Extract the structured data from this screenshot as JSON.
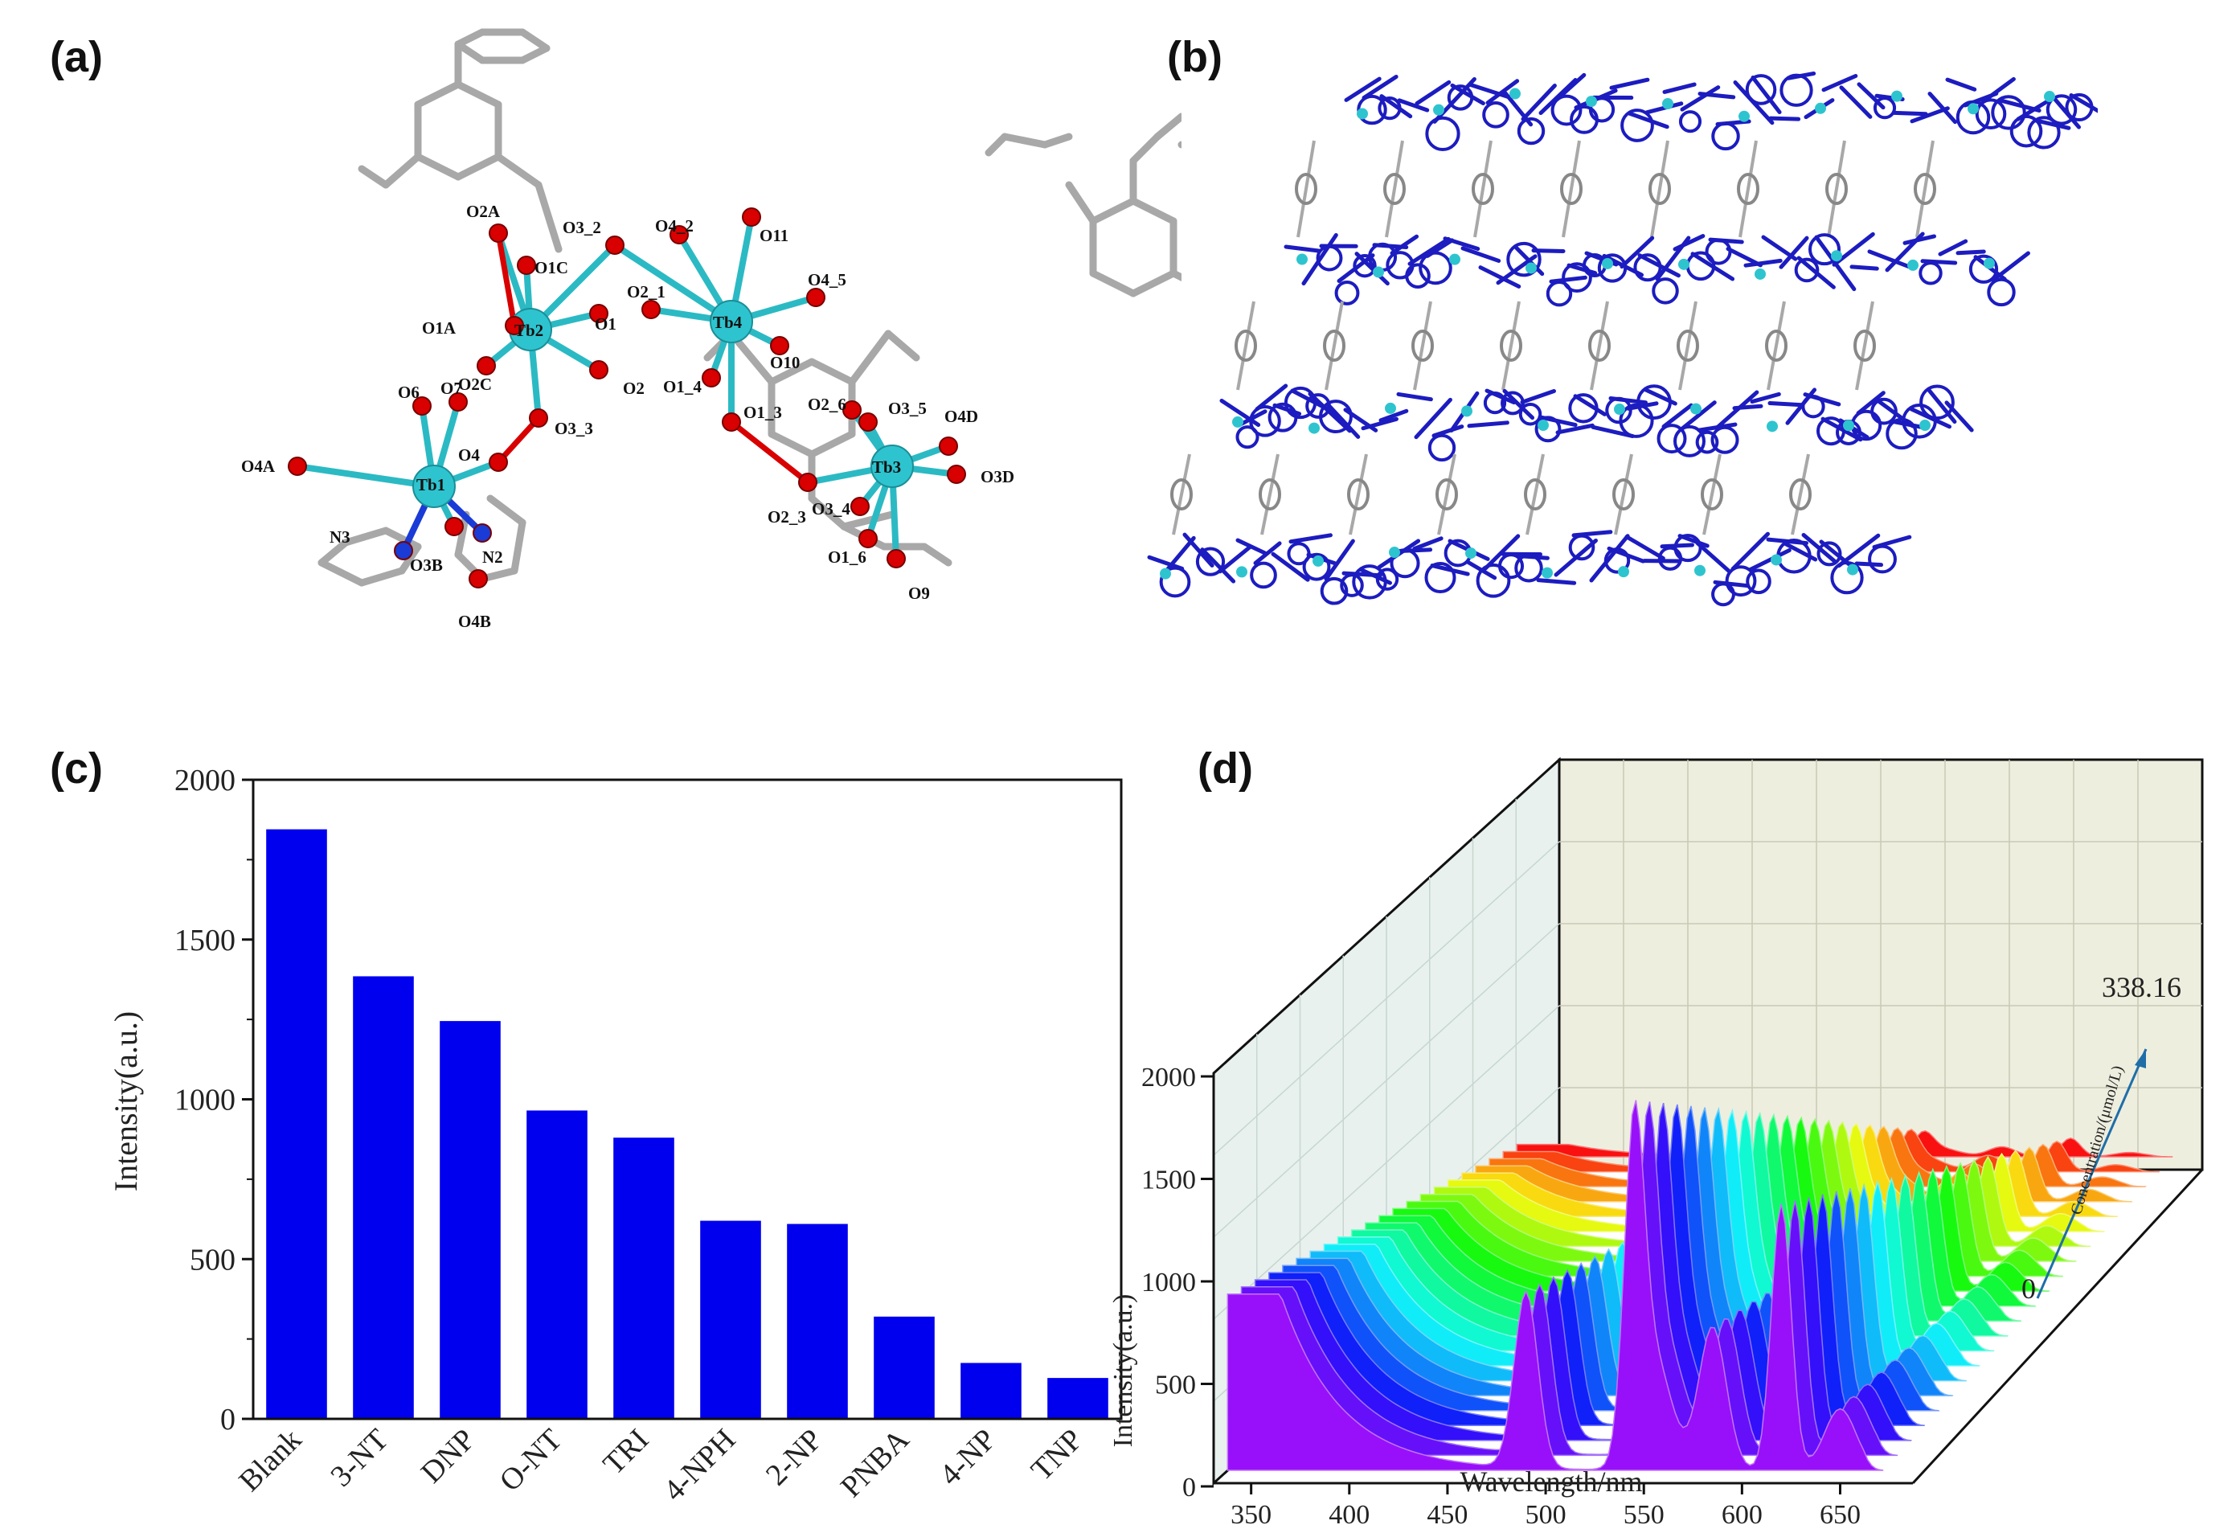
{
  "panels": {
    "a": {
      "label": "(a)",
      "atoms": [
        "Tb1",
        "Tb2",
        "Tb3",
        "Tb4",
        "O6",
        "O7",
        "O4A",
        "O4",
        "O3B",
        "N3",
        "N2",
        "O4B",
        "O2A",
        "O1C",
        "O3_2",
        "O4_2",
        "O11",
        "O1A",
        "O1",
        "O2_1",
        "O4_5",
        "O2C",
        "O2",
        "O10",
        "O1_4",
        "O3_3",
        "O1_3",
        "O2_6",
        "O3_5",
        "O4D",
        "O3D",
        "O2_3",
        "O3_4",
        "O1_6",
        "O9",
        "O2A",
        "O1A"
      ]
    },
    "b": {
      "label": "(b)"
    },
    "c": {
      "label": "(c)"
    },
    "d": {
      "label": "(d)"
    }
  },
  "colors": {
    "bar": "#0000ee",
    "tb": "#2ec4cf",
    "oxygen": "#d80000",
    "nitrogen": "#1a3bd6",
    "carbon": "#a8a8a8",
    "framework": "#1c1cc0",
    "wall": "#eeefe2"
  },
  "chart_data": [
    {
      "type": "bar",
      "categories": [
        "Blank",
        "3-NT",
        "DNP",
        "O-NT",
        "TRI",
        "4-NPH",
        "2-NP",
        "PNBA",
        "4-NP",
        "TNP"
      ],
      "values": [
        1845,
        1385,
        1245,
        965,
        880,
        620,
        610,
        320,
        175,
        128
      ],
      "ylabel": "Intensity(a.u.)",
      "ylim": [
        0,
        2000
      ],
      "yticks": [
        0,
        500,
        1000,
        1500,
        2000
      ],
      "grid": false
    },
    {
      "type": "area",
      "x_ticks": [
        350,
        400,
        450,
        500,
        550,
        600,
        650
      ],
      "xlabel": "Wavelength/nm",
      "ylabel": "Intensity(a.u.)",
      "y_ticks": [
        0,
        500,
        1000,
        1500,
        2000
      ],
      "ylim": [
        0,
        2000
      ],
      "zlabel": "Concentration/(μmol/L)",
      "z_range_labels": [
        "0",
        "338.16"
      ],
      "series_count": 22,
      "grid": true,
      "note_peaks_nm": [
        490,
        545,
        585,
        620
      ],
      "first_series_peaks": [
        870,
        1500,
        700,
        1300
      ]
    }
  ]
}
